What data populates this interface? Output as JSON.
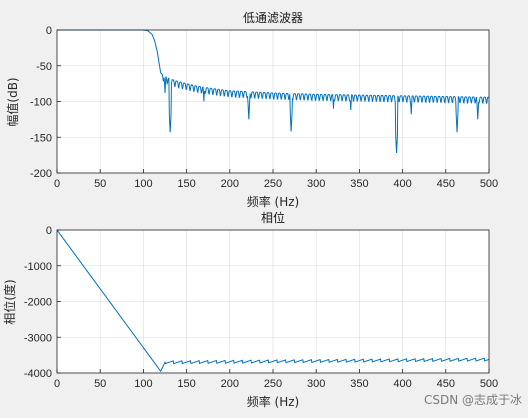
{
  "watermark": "CSDN @志成于冰",
  "colors": {
    "line": "#0072BD",
    "grid": "#dcdcdc",
    "axis": "#262626",
    "plot_bg": "#ffffff",
    "figure_bg": "#f0f0f0"
  },
  "chart_data": [
    {
      "type": "line",
      "title": "低通滤波器",
      "xlabel": "频率 (Hz)",
      "ylabel": "幅值(dB)",
      "xlim": [
        0,
        500
      ],
      "ylim": [
        -200,
        0
      ],
      "xticks": [
        0,
        50,
        100,
        150,
        200,
        250,
        300,
        350,
        400,
        450,
        500
      ],
      "yticks": [
        0,
        -50,
        -100,
        -150,
        -200
      ],
      "grid": true,
      "series": [
        {
          "x": [
            0,
            100,
            105,
            110,
            113,
            116,
            118,
            120,
            122,
            130,
            140,
            150,
            160,
            175,
            200,
            250,
            300,
            350,
            400,
            450,
            500
          ],
          "y": [
            0,
            0,
            -1,
            -6,
            -15,
            -30,
            -45,
            -60,
            -62,
            -68,
            -72,
            -75,
            -78,
            -81,
            -85,
            -88,
            -90,
            -91,
            -92,
            -93,
            -94
          ],
          "ripple_dip_x": [
            125,
            131,
            170,
            222,
            271,
            320,
            340,
            393,
            410,
            463,
            487
          ],
          "ripple_dip_y": [
            -88,
            -143,
            -100,
            -125,
            -142,
            -110,
            -112,
            -172,
            -118,
            -143,
            -125
          ]
        }
      ]
    },
    {
      "type": "line",
      "title": "相位",
      "xlabel": "频率 (Hz)",
      "ylabel": "相位(度)",
      "xlim": [
        0,
        500
      ],
      "ylim": [
        -4000,
        0
      ],
      "xticks": [
        0,
        50,
        100,
        150,
        200,
        250,
        300,
        350,
        400,
        450,
        500
      ],
      "yticks": [
        0,
        -1000,
        -2000,
        -3000,
        -4000
      ],
      "grid": true,
      "series": [
        {
          "x": [
            0,
            120,
            125,
            500
          ],
          "y": [
            0,
            -3950,
            -3700,
            -3620
          ],
          "ripple_amplitude": 80
        }
      ]
    }
  ]
}
